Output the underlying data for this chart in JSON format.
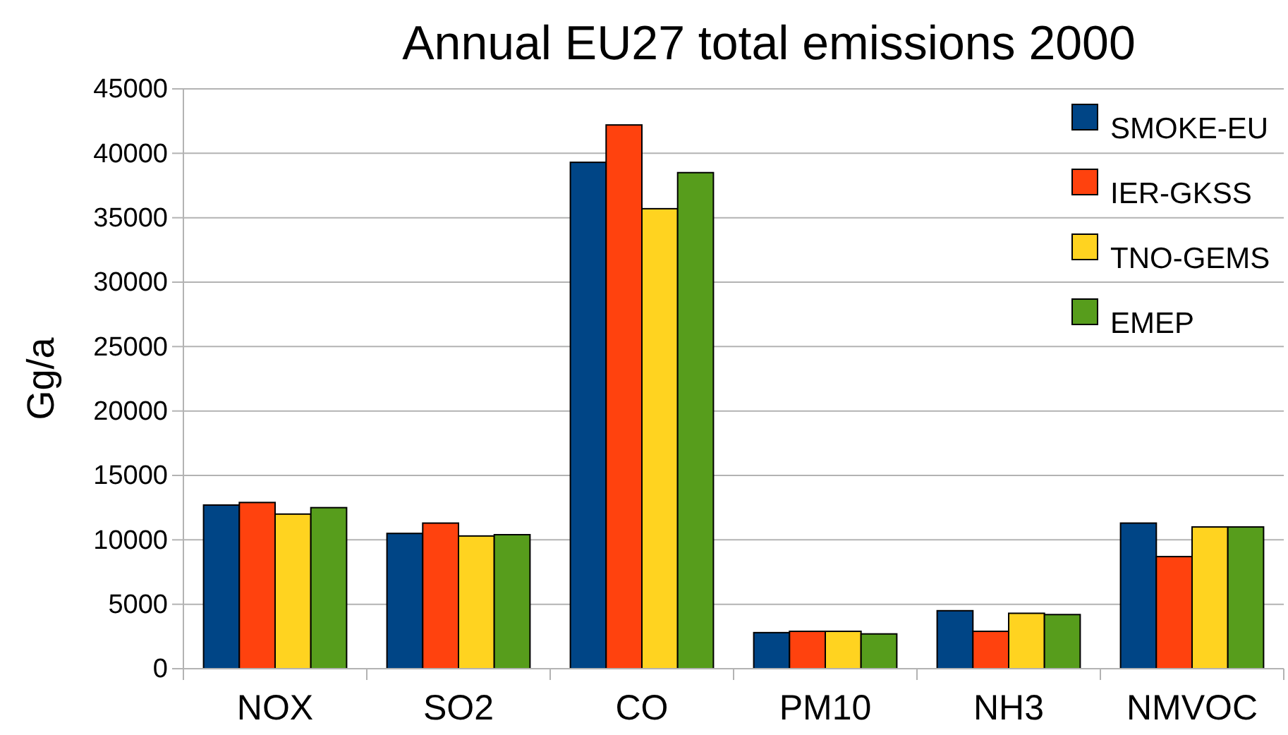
{
  "chart_data": {
    "type": "bar",
    "title": "Annual EU27 total emissions 2000",
    "ylabel": "Gg/a",
    "categories": [
      "NOX",
      "SO2",
      "CO",
      "PM10",
      "NH3",
      "NMVOC"
    ],
    "series": [
      {
        "name": "SMOKE-EU",
        "color": "#004586",
        "values": [
          12700,
          10500,
          39300,
          2800,
          4500,
          11300
        ]
      },
      {
        "name": "IER-GKSS",
        "color": "#ff420e",
        "values": [
          12900,
          11300,
          42200,
          2900,
          2900,
          8700
        ]
      },
      {
        "name": "TNO-GEMS",
        "color": "#ffd320",
        "values": [
          12000,
          10300,
          35700,
          2900,
          4300,
          11000
        ]
      },
      {
        "name": "EMEP",
        "color": "#579d1c",
        "values": [
          12500,
          10400,
          38500,
          2700,
          4200,
          11000
        ]
      }
    ],
    "ylim": [
      0,
      45000
    ],
    "yticks": [
      0,
      5000,
      10000,
      15000,
      20000,
      25000,
      30000,
      35000,
      40000,
      45000
    ],
    "grid": "y",
    "legend": "top right"
  }
}
